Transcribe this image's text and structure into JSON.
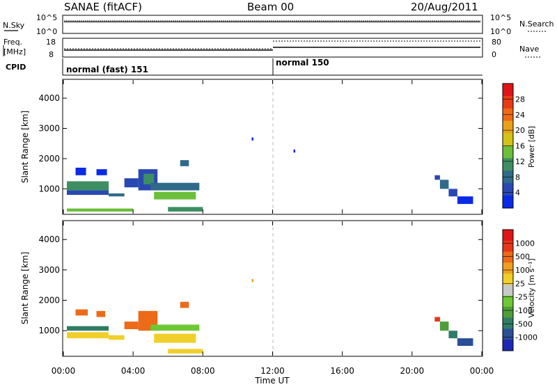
{
  "header": {
    "station": "SANAE (fitACF)",
    "beam": "Beam 00",
    "date": "20/Aug/2011"
  },
  "nsky_panel": {
    "left_label": "N.Sky",
    "left_ticks": [
      "10^5",
      "10^0"
    ],
    "right_ticks": [
      "10^5",
      "10^0"
    ],
    "right_label": "N.Search"
  },
  "freq_panel": {
    "left_label_1": "Freq.",
    "left_label_2": "[MHz]",
    "left_ticks": [
      "18",
      "8"
    ],
    "right_ticks": [
      "80",
      "0"
    ],
    "right_label": "Nave"
  },
  "cpid_panel": {
    "label": "CPID",
    "modes": [
      {
        "name": "normal (fast) 151",
        "start_hour": 0
      },
      {
        "name": "normal 150",
        "start_hour": 12
      }
    ]
  },
  "chart_data": [
    {
      "type": "heatmap",
      "name": "Power",
      "ylabel": "Slant Range [km]",
      "ylim": [
        180,
        4600
      ],
      "xlim": [
        0,
        24
      ],
      "yticks": [
        "4000",
        "3000",
        "2000",
        "1000"
      ],
      "colorbar": {
        "label": "Power [dB]",
        "ticks": [
          "28",
          "24",
          "20",
          "16",
          "12",
          "8",
          "4"
        ],
        "range": [
          0,
          32
        ],
        "colors": [
          "#0a2ae6",
          "#2a48b2",
          "#2f6a8a",
          "#3d8f62",
          "#6bbf3a",
          "#d4c21a",
          "#e8a21a",
          "#ee6a16",
          "#ea3a14",
          "#e01414"
        ]
      },
      "regions": [
        {
          "x": [
            0.2,
            2.6
          ],
          "y": [
            950,
            1250
          ],
          "level": 3
        },
        {
          "x": [
            0.2,
            2.6
          ],
          "y": [
            800,
            950
          ],
          "level": 1
        },
        {
          "x": [
            0.7,
            1.3
          ],
          "y": [
            1450,
            1700
          ],
          "level": 0
        },
        {
          "x": [
            1.9,
            2.5
          ],
          "y": [
            1450,
            1650
          ],
          "level": 0
        },
        {
          "x": [
            2.6,
            3.5
          ],
          "y": [
            750,
            850
          ],
          "level": 2
        },
        {
          "x": [
            3.5,
            4.3
          ],
          "y": [
            1050,
            1350
          ],
          "level": 1
        },
        {
          "x": [
            4.3,
            5.4
          ],
          "y": [
            950,
            1650
          ],
          "level": 1
        },
        {
          "x": [
            4.6,
            5.2
          ],
          "y": [
            1150,
            1500
          ],
          "level": 3
        },
        {
          "x": [
            5.0,
            7.8
          ],
          "y": [
            950,
            1200
          ],
          "level": 2
        },
        {
          "x": [
            5.2,
            7.6
          ],
          "y": [
            650,
            900
          ],
          "level": 4
        },
        {
          "x": [
            6.7,
            7.2
          ],
          "y": [
            1750,
            1950
          ],
          "level": 2
        },
        {
          "x": [
            6.0,
            8.0
          ],
          "y": [
            250,
            400
          ],
          "level": 3
        },
        {
          "x": [
            0.2,
            4.0
          ],
          "y": [
            250,
            350
          ],
          "level": 4
        },
        {
          "x": [
            10.8,
            10.9
          ],
          "y": [
            2600,
            2700
          ],
          "level": 0
        },
        {
          "x": [
            13.2,
            13.3
          ],
          "y": [
            2200,
            2300
          ],
          "level": 0
        },
        {
          "x": [
            21.3,
            21.6
          ],
          "y": [
            1300,
            1450
          ],
          "level": 1
        },
        {
          "x": [
            21.6,
            22.1
          ],
          "y": [
            1000,
            1300
          ],
          "level": 2
        },
        {
          "x": [
            22.1,
            22.6
          ],
          "y": [
            750,
            1000
          ],
          "level": 1
        },
        {
          "x": [
            22.6,
            23.5
          ],
          "y": [
            500,
            750
          ],
          "level": 0
        }
      ]
    },
    {
      "type": "heatmap",
      "name": "Velocity",
      "ylabel": "Slant Range [km]",
      "ylim": [
        180,
        4600
      ],
      "xlim": [
        0,
        24
      ],
      "yticks": [
        "4000",
        "3000",
        "2000",
        "1000"
      ],
      "xticks": [
        "00:00",
        "04:00",
        "08:00",
        "12:00",
        "16:00",
        "20:00",
        "00:00"
      ],
      "xlabel": "Time UT",
      "colorbar": {
        "label": "Velocity [m s⁻¹]",
        "ticks": [
          "1000",
          "500",
          "100",
          "25",
          "-25",
          "-100",
          "-500",
          "-1000"
        ],
        "colors": [
          "#1f28b4",
          "#2a4f96",
          "#2f7c66",
          "#4e9e3a",
          "#6ec833",
          "#c8c8c8",
          "#f0cf2a",
          "#f0a020",
          "#ec6a18",
          "#e83418",
          "#e01414"
        ]
      },
      "regions": [
        {
          "x": [
            0.2,
            2.6
          ],
          "y": [
            1000,
            1150
          ],
          "level": 2
        },
        {
          "x": [
            0.2,
            2.6
          ],
          "y": [
            750,
            950
          ],
          "level": 6
        },
        {
          "x": [
            0.7,
            1.4
          ],
          "y": [
            1500,
            1700
          ],
          "level": 8
        },
        {
          "x": [
            1.9,
            2.4
          ],
          "y": [
            1450,
            1650
          ],
          "level": 8
        },
        {
          "x": [
            2.6,
            3.5
          ],
          "y": [
            700,
            850
          ],
          "level": 6
        },
        {
          "x": [
            3.5,
            4.3
          ],
          "y": [
            1050,
            1300
          ],
          "level": 8
        },
        {
          "x": [
            4.3,
            5.4
          ],
          "y": [
            1000,
            1650
          ],
          "level": 8
        },
        {
          "x": [
            5.0,
            7.8
          ],
          "y": [
            1000,
            1200
          ],
          "level": 4
        },
        {
          "x": [
            5.2,
            7.6
          ],
          "y": [
            600,
            900
          ],
          "level": 6
        },
        {
          "x": [
            6.7,
            7.2
          ],
          "y": [
            1750,
            1950
          ],
          "level": 8
        },
        {
          "x": [
            6.0,
            8.0
          ],
          "y": [
            250,
            400
          ],
          "level": 6
        },
        {
          "x": [
            10.8,
            10.9
          ],
          "y": [
            2600,
            2700
          ],
          "level": 7
        },
        {
          "x": [
            21.3,
            21.6
          ],
          "y": [
            1300,
            1450
          ],
          "level": 9
        },
        {
          "x": [
            21.6,
            22.1
          ],
          "y": [
            1000,
            1300
          ],
          "level": 3
        },
        {
          "x": [
            22.1,
            22.6
          ],
          "y": [
            750,
            1000
          ],
          "level": 2
        },
        {
          "x": [
            22.6,
            23.5
          ],
          "y": [
            500,
            750
          ],
          "level": 1
        }
      ]
    }
  ]
}
